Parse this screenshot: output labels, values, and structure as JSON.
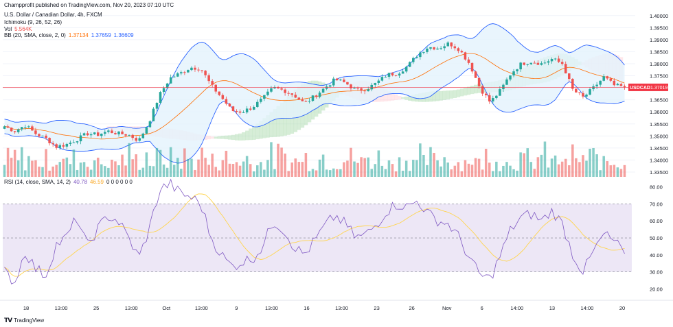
{
  "attribution": "Champprofit published on TradingView.com, Nov 20, 2023 07:10 UTC",
  "symbol_title": "U.S. Dollar / Canadian Dollar, 4h, FXCM",
  "indicators": {
    "ichimoku": "Ichimoku (9, 26, 52, 26)",
    "vol": {
      "label": "Vol",
      "value": "5.564K"
    },
    "bb": {
      "label": "BB (20, SMA, close, 2, 0)",
      "basis": "1.37134",
      "upper": "1.37659",
      "lower": "1.36609"
    },
    "rsi": {
      "label": "RSI (14, close, SMA, 14, 2)",
      "value": "40.78",
      "ma": "46.59",
      "extra": "0 0 0 0 0 0"
    }
  },
  "price_tag": {
    "symbol": "USDCAD",
    "value": "1.37019"
  },
  "branding": "TradingView",
  "colors": {
    "up": "#26a69a",
    "down": "#ef5350",
    "bb_band": "#2962ff",
    "bb_basis": "#ff6d00",
    "bb_fill": "#e3f2fd",
    "cloud_green": "#a5d6a7",
    "cloud_red": "#ffcdd2",
    "rsi_line": "#7e57c2",
    "rsi_ma": "#ffd54f",
    "rsi_bg": "#ede7f6",
    "tag": "#f23645"
  },
  "chart_data": [
    {
      "type": "candlestick",
      "title": "U.S. Dollar / Canadian Dollar, 4h, FXCM",
      "y_ticks": [
        "1.40000",
        "1.39500",
        "1.39000",
        "1.38500",
        "1.38000",
        "1.37500",
        "1.37000",
        "1.36500",
        "1.36000",
        "1.35500",
        "1.35000",
        "1.34500",
        "1.34000",
        "1.33500"
      ],
      "ylim": [
        1.333,
        1.4025
      ],
      "x_labels": [
        "18",
        "13:00",
        "25",
        "13:00",
        "Oct",
        "13:00",
        "9",
        "13:00",
        "16",
        "13:00",
        "23",
        "26",
        "Nov",
        "6",
        "14:00",
        "13",
        "14:00",
        "20"
      ],
      "close_path": [
        1.354,
        1.352,
        1.3545,
        1.351,
        1.349,
        1.3455,
        1.3465,
        1.3485,
        1.351,
        1.3505,
        1.352,
        1.351,
        1.3505,
        1.348,
        1.356,
        1.367,
        1.374,
        1.376,
        1.3785,
        1.378,
        1.371,
        1.366,
        1.3605,
        1.36,
        1.362,
        1.3655,
        1.37,
        1.369,
        1.367,
        1.3635,
        1.3665,
        1.37,
        1.3735,
        1.372,
        1.369,
        1.3695,
        1.372,
        1.3755,
        1.376,
        1.379,
        1.384,
        1.387,
        1.3865,
        1.3885,
        1.386,
        1.38,
        1.37,
        1.364,
        1.369,
        1.376,
        1.38,
        1.381,
        1.38,
        1.382,
        1.38,
        1.369,
        1.366,
        1.37,
        1.3745,
        1.371,
        1.3702
      ],
      "last_price": 1.37019
    },
    {
      "type": "line",
      "title": "RSI (14, close, SMA, 14, 2)",
      "y_ticks": [
        "80.00",
        "70.00",
        "60.00",
        "50.00",
        "40.00",
        "30.00",
        "20.00"
      ],
      "ylim": [
        15,
        83
      ],
      "band": [
        30,
        70
      ],
      "midline": 50,
      "rsi_path": [
        30,
        24,
        42,
        32,
        28,
        46,
        50,
        62,
        45,
        55,
        63,
        60,
        50,
        38,
        55,
        78,
        82,
        76,
        74,
        70,
        50,
        40,
        33,
        36,
        38,
        45,
        60,
        55,
        45,
        40,
        48,
        57,
        63,
        58,
        50,
        52,
        58,
        66,
        70,
        68,
        72,
        64,
        60,
        58,
        50,
        38,
        28,
        26,
        40,
        55,
        62,
        64,
        60,
        66,
        58,
        40,
        30,
        42,
        52,
        48,
        41
      ],
      "rsi_last": 40.78,
      "rsi_ma_last": 46.59
    }
  ]
}
